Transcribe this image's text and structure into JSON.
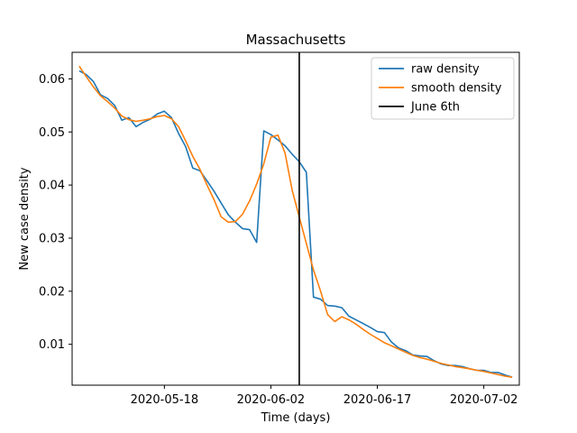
{
  "chart_data": {
    "type": "line",
    "title": "Massachusetts",
    "xlabel": "Time (days)",
    "ylabel": "New case density",
    "x_start": "2020-05-06",
    "xlim": [
      "2020-05-05",
      "2020-07-07"
    ],
    "ylim": [
      0.0023,
      0.065
    ],
    "x_ticks": [
      "2020-05-18",
      "2020-06-02",
      "2020-06-17",
      "2020-07-02"
    ],
    "y_ticks": [
      0.01,
      0.02,
      0.03,
      0.04,
      0.05,
      0.06
    ],
    "y_tick_labels": [
      "0.01",
      "0.02",
      "0.03",
      "0.04",
      "0.05",
      "0.06"
    ],
    "grid": false,
    "legend_position": "top-right",
    "series": [
      {
        "name": "raw density",
        "color": "#1f77b4",
        "values": [
          0.0615,
          0.0608,
          0.0595,
          0.057,
          0.0563,
          0.055,
          0.0522,
          0.0527,
          0.051,
          0.0518,
          0.0524,
          0.0534,
          0.0539,
          0.0527,
          0.0497,
          0.0472,
          0.0432,
          0.0427,
          0.0408,
          0.0388,
          0.0366,
          0.0344,
          0.033,
          0.0318,
          0.0316,
          0.0292,
          0.0502,
          0.0495,
          0.0485,
          0.0474,
          0.0458,
          0.0444,
          0.0424,
          0.0189,
          0.0185,
          0.0173,
          0.0172,
          0.0169,
          0.0153,
          0.0146,
          0.0139,
          0.0132,
          0.0124,
          0.0122,
          0.0104,
          0.0093,
          0.0088,
          0.008,
          0.0078,
          0.0077,
          0.0069,
          0.0063,
          0.006,
          0.006,
          0.0058,
          0.0054,
          0.0051,
          0.0051,
          0.0047,
          0.0047,
          0.0042,
          0.0038
        ]
      },
      {
        "name": "smooth density",
        "color": "#ff7f0e",
        "values": [
          0.0624,
          0.0604,
          0.0585,
          0.0568,
          0.0557,
          0.0545,
          0.053,
          0.0523,
          0.052,
          0.0522,
          0.0525,
          0.0529,
          0.0531,
          0.0525,
          0.051,
          0.0483,
          0.0454,
          0.043,
          0.04,
          0.0372,
          0.034,
          0.033,
          0.0331,
          0.0345,
          0.037,
          0.0402,
          0.044,
          0.049,
          0.0494,
          0.046,
          0.039,
          0.034,
          0.029,
          0.024,
          0.02,
          0.0156,
          0.0143,
          0.0152,
          0.0146,
          0.0138,
          0.0128,
          0.0119,
          0.0111,
          0.0103,
          0.0097,
          0.0091,
          0.0085,
          0.0079,
          0.0075,
          0.0072,
          0.0068,
          0.0064,
          0.0061,
          0.0058,
          0.0056,
          0.0054,
          0.0051,
          0.0049,
          0.0046,
          0.0043,
          0.004,
          0.0038
        ]
      }
    ],
    "vline": {
      "x": "2020-06-06",
      "name": "June 6th",
      "color": "#000000"
    }
  }
}
